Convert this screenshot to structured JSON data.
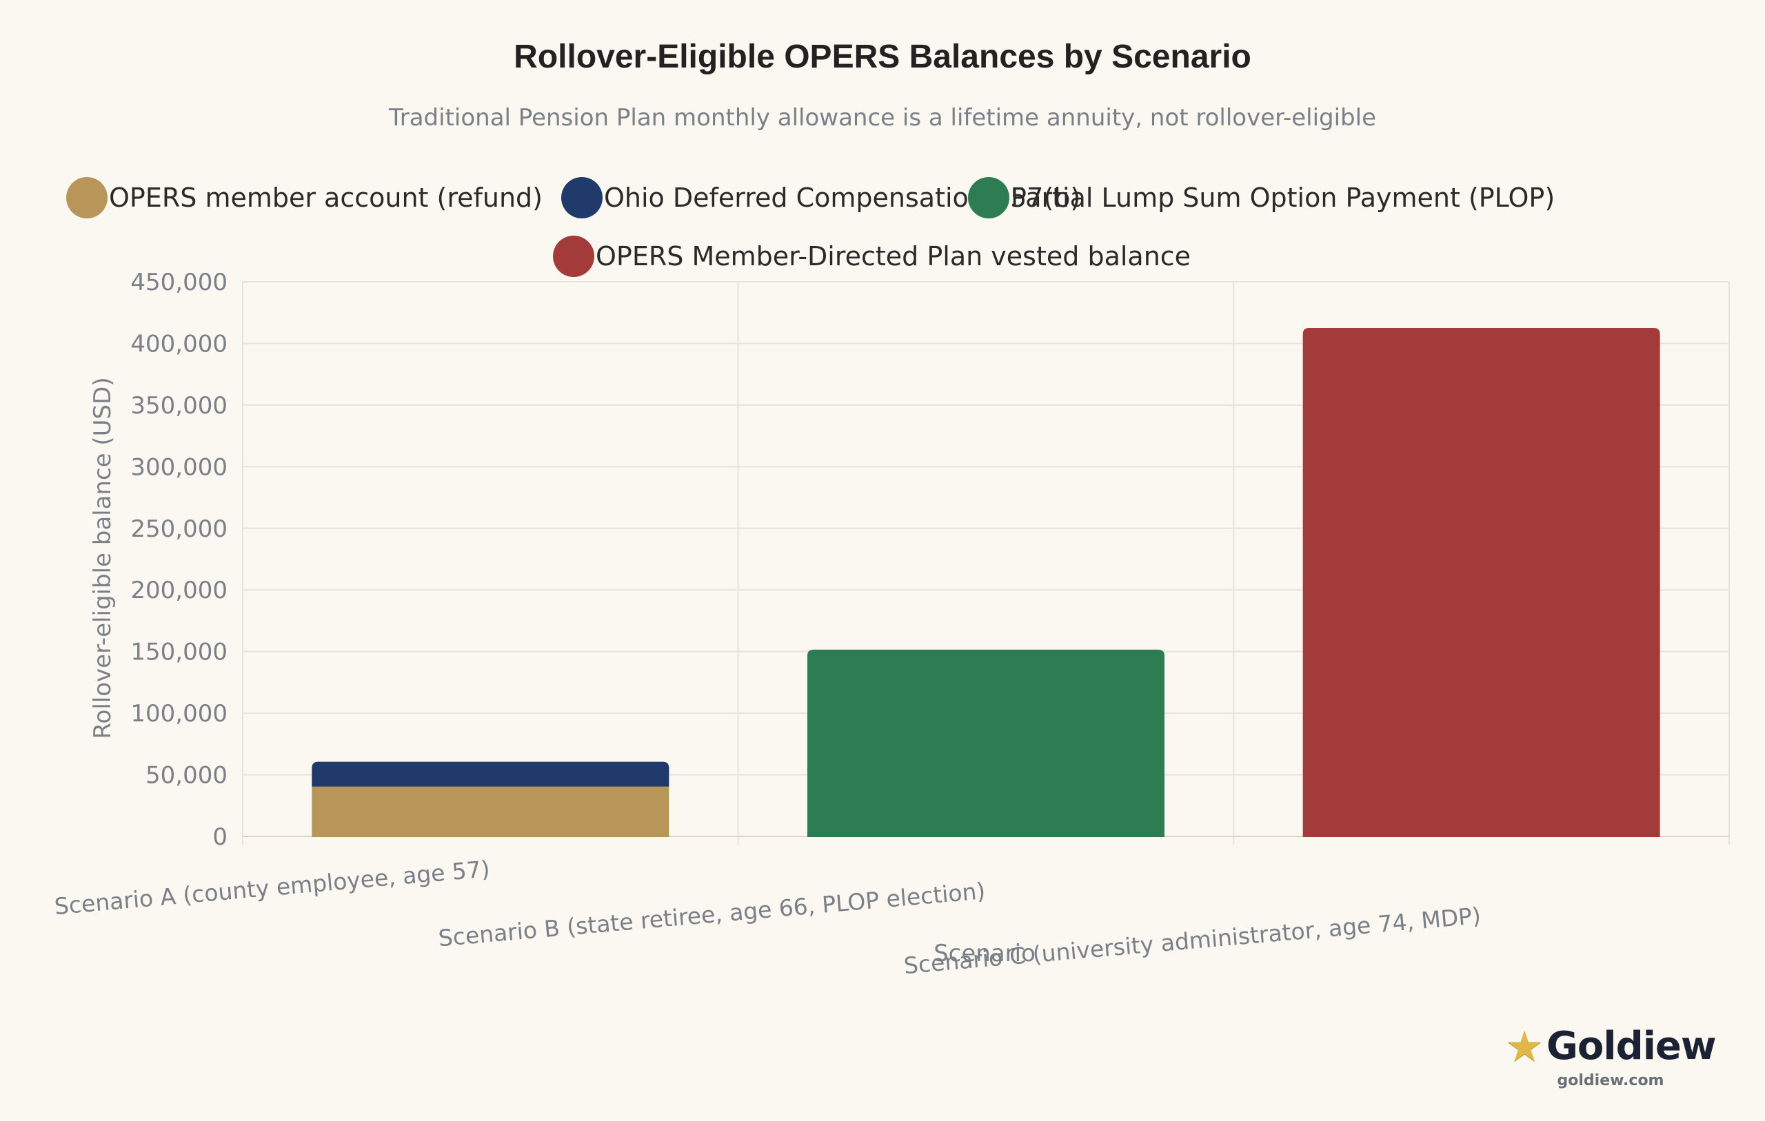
{
  "chart_data": {
    "type": "bar",
    "stacked": true,
    "title": "Rollover-Eligible OPERS Balances by Scenario",
    "subtitle": "Traditional Pension Plan monthly allowance is a lifetime annuity, not rollover-eligible",
    "xlabel": "Scenario",
    "ylabel": "Rollover-eligible balance (USD)",
    "ylim": [
      0,
      450000
    ],
    "yticks": [
      "0",
      "50,000",
      "100,000",
      "150,000",
      "200,000",
      "250,000",
      "300,000",
      "350,000",
      "400,000",
      "450,000"
    ],
    "categories": [
      "Scenario A (county employee, age 57)",
      "Scenario B (state retiree, age 66, PLOP election)",
      "Scenario C (university administrator, age 74, MDP)"
    ],
    "series": [
      {
        "name": "OPERS member account (refund)",
        "color": "#b8965a",
        "values": [
          41000,
          0,
          0
        ]
      },
      {
        "name": "Ohio Deferred Compensation 457(b)",
        "color": "#1f3a6b",
        "values": [
          19000,
          0,
          0
        ]
      },
      {
        "name": "Partial Lump Sum Option Payment (PLOP)",
        "color": "#2e7d52",
        "values": [
          0,
          151000,
          0
        ]
      },
      {
        "name": "OPERS Member-Directed Plan vested balance",
        "color": "#a33b3b",
        "values": [
          0,
          0,
          412000
        ]
      }
    ],
    "grid": true,
    "legend_position": "top-center"
  },
  "brand": {
    "name": "Goldiew",
    "url": "goldiew.com",
    "icon": "star-icon"
  }
}
